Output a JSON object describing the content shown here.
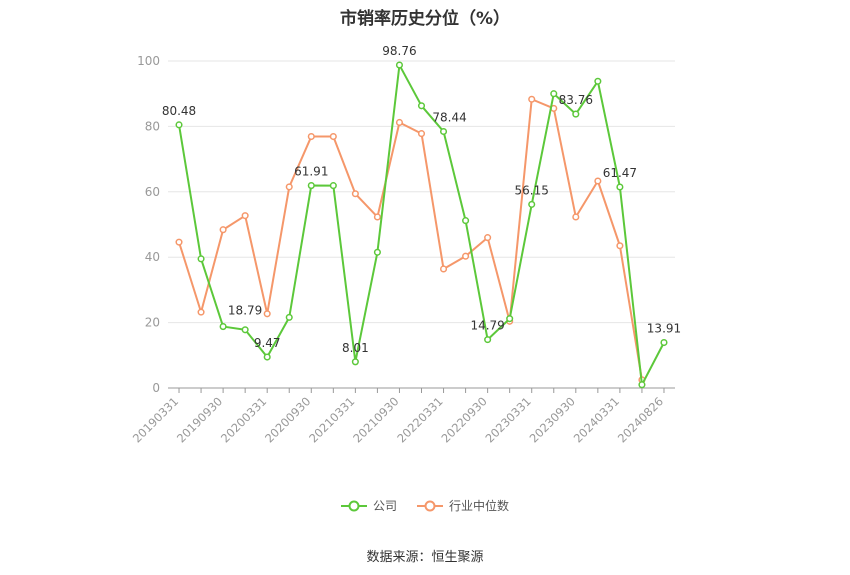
{
  "chart_data": {
    "type": "line",
    "title": "市销率历史分位（%）",
    "xlabel": "",
    "ylabel": "",
    "ylim": [
      0,
      100
    ],
    "yticks": [
      0,
      20,
      40,
      60,
      80,
      100
    ],
    "grid": true,
    "legend_position": "bottom",
    "x": [
      "20190331",
      "20190630",
      "20190930",
      "20191231",
      "20200331",
      "20200630",
      "20200930",
      "20201231",
      "20210331",
      "20210630",
      "20210930",
      "20211231",
      "20220331",
      "20220630",
      "20220930",
      "20221231",
      "20230331",
      "20230630",
      "20230930",
      "20231231",
      "20240331",
      "20240630",
      "20240826"
    ],
    "x_tick_labels": [
      "20190331",
      "20190930",
      "20200331",
      "20200930",
      "20210331",
      "20210930",
      "20220331",
      "20220930",
      "20230331",
      "20230930",
      "20240331",
      "20240826"
    ],
    "series": [
      {
        "name": "公司",
        "color": "#5cc83a",
        "values": [
          80.48,
          39.5,
          18.79,
          17.8,
          9.47,
          21.6,
          61.91,
          61.9,
          8.01,
          41.5,
          98.76,
          86.3,
          78.44,
          51.2,
          14.79,
          21.2,
          56.15,
          90.0,
          83.76,
          93.8,
          61.47,
          1.0,
          13.91
        ],
        "labels": {
          "0": "80.48",
          "2": "18.79",
          "4": "9.47",
          "6": "61.91",
          "8": "8.01",
          "10": "98.76",
          "12": "78.44",
          "14": "14.79",
          "16": "56.15",
          "18": "83.76",
          "20": "61.47",
          "22": "13.91"
        }
      },
      {
        "name": "行业中位数",
        "color": "#f5976a",
        "values": [
          44.6,
          23.2,
          48.4,
          52.7,
          22.7,
          61.5,
          76.9,
          76.9,
          59.4,
          52.3,
          81.2,
          77.8,
          36.4,
          40.3,
          46.0,
          20.4,
          88.3,
          85.5,
          52.3,
          63.3,
          43.5,
          2.5,
          null
        ]
      }
    ]
  },
  "source": "数据来源：恒生聚源"
}
